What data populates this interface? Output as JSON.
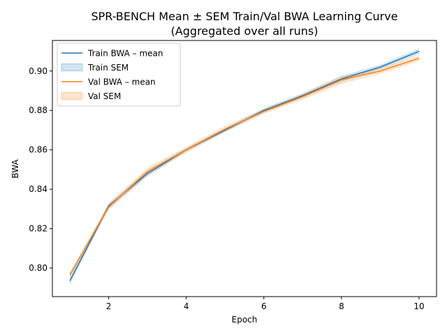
{
  "chart_data": {
    "type": "line",
    "title_line1": "SPR-BENCH Mean ± SEM Train/Val BWA Learning Curve",
    "title_line2": "(Aggregated over all runs)",
    "xlabel": "Epoch",
    "ylabel": "BWA",
    "x": [
      1,
      2,
      3,
      4,
      5,
      6,
      7,
      8,
      9,
      10
    ],
    "xlim": [
      0.55,
      10.45
    ],
    "ylim": [
      0.7855,
      0.9155
    ],
    "xticks": [
      2,
      4,
      6,
      8,
      10
    ],
    "yticks": [
      0.8,
      0.82,
      0.84,
      0.86,
      0.88,
      0.9
    ],
    "grid": false,
    "legend_position": "upper-left",
    "series": [
      {
        "name": "Train BWA – mean",
        "band_name": "Train SEM",
        "color": "#1f77b4",
        "values": [
          0.7935,
          0.8315,
          0.848,
          0.86,
          0.87,
          0.88,
          0.8875,
          0.896,
          0.902,
          0.91
        ],
        "sem": [
          0.002,
          0.0015,
          0.0015,
          0.001,
          0.001,
          0.0012,
          0.0012,
          0.0015,
          0.0012,
          0.0015
        ]
      },
      {
        "name": "Val BWA – mean",
        "band_name": "Val SEM",
        "color": "#ff7f0e",
        "values": [
          0.7965,
          0.831,
          0.849,
          0.86,
          0.8705,
          0.8795,
          0.887,
          0.8955,
          0.9,
          0.9065
        ],
        "sem": [
          0.0015,
          0.0015,
          0.002,
          0.0015,
          0.0015,
          0.0012,
          0.0015,
          0.002,
          0.0015,
          0.0015
        ]
      }
    ]
  }
}
